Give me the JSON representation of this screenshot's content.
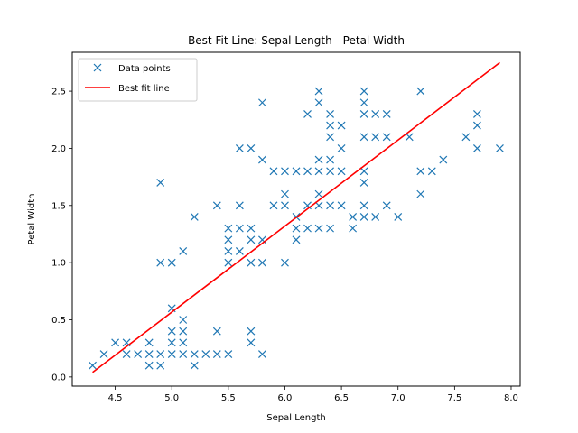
{
  "chart_data": {
    "type": "scatter",
    "title": "Best Fit Line: Sepal Length - Petal Width",
    "xlabel": "Sepal Length",
    "ylabel": "Petal Width",
    "xlim": [
      4.12,
      8.08
    ],
    "ylim": [
      -0.08,
      2.84
    ],
    "xticks": [
      4.5,
      5.0,
      5.5,
      6.0,
      6.5,
      7.0,
      7.5,
      8.0
    ],
    "xtick_labels": [
      "4.5",
      "5.0",
      "5.5",
      "6.0",
      "6.5",
      "7.0",
      "7.5",
      "8.0"
    ],
    "yticks": [
      0.0,
      0.5,
      1.0,
      1.5,
      2.0,
      2.5
    ],
    "ytick_labels": [
      "0.0",
      "0.5",
      "1.0",
      "1.5",
      "2.0",
      "2.5"
    ],
    "grid": false,
    "legend_position": "upper-left",
    "series": [
      {
        "name": "Data points",
        "kind": "scatter",
        "marker": "x",
        "color": "#1f77b4",
        "points": [
          [
            4.3,
            0.1
          ],
          [
            4.4,
            0.2
          ],
          [
            4.5,
            0.3
          ],
          [
            4.6,
            0.2
          ],
          [
            4.6,
            0.3
          ],
          [
            4.7,
            0.2
          ],
          [
            4.8,
            0.1
          ],
          [
            4.8,
            0.2
          ],
          [
            4.8,
            0.3
          ],
          [
            4.9,
            0.1
          ],
          [
            4.9,
            0.2
          ],
          [
            4.9,
            1.0
          ],
          [
            4.9,
            1.7
          ],
          [
            5.0,
            0.2
          ],
          [
            5.0,
            0.3
          ],
          [
            5.0,
            0.4
          ],
          [
            5.0,
            0.6
          ],
          [
            5.0,
            1.0
          ],
          [
            5.1,
            0.2
          ],
          [
            5.1,
            0.3
          ],
          [
            5.1,
            0.4
          ],
          [
            5.1,
            0.5
          ],
          [
            5.1,
            1.1
          ],
          [
            5.2,
            0.1
          ],
          [
            5.2,
            0.2
          ],
          [
            5.2,
            1.4
          ],
          [
            5.3,
            0.2
          ],
          [
            5.4,
            0.2
          ],
          [
            5.4,
            0.4
          ],
          [
            5.4,
            1.5
          ],
          [
            5.5,
            0.2
          ],
          [
            5.5,
            1.0
          ],
          [
            5.5,
            1.1
          ],
          [
            5.5,
            1.2
          ],
          [
            5.5,
            1.3
          ],
          [
            5.6,
            1.1
          ],
          [
            5.6,
            1.3
          ],
          [
            5.6,
            1.5
          ],
          [
            5.6,
            2.0
          ],
          [
            5.7,
            0.3
          ],
          [
            5.7,
            0.4
          ],
          [
            5.7,
            1.0
          ],
          [
            5.7,
            1.2
          ],
          [
            5.7,
            1.3
          ],
          [
            5.7,
            2.0
          ],
          [
            5.8,
            0.2
          ],
          [
            5.8,
            1.0
          ],
          [
            5.8,
            1.2
          ],
          [
            5.8,
            1.9
          ],
          [
            5.8,
            2.4
          ],
          [
            5.9,
            1.5
          ],
          [
            5.9,
            1.8
          ],
          [
            6.0,
            1.0
          ],
          [
            6.0,
            1.5
          ],
          [
            6.0,
            1.6
          ],
          [
            6.0,
            1.8
          ],
          [
            6.1,
            1.2
          ],
          [
            6.1,
            1.3
          ],
          [
            6.1,
            1.4
          ],
          [
            6.1,
            1.8
          ],
          [
            6.2,
            1.3
          ],
          [
            6.2,
            1.5
          ],
          [
            6.2,
            1.8
          ],
          [
            6.2,
            2.3
          ],
          [
            6.3,
            1.3
          ],
          [
            6.3,
            1.5
          ],
          [
            6.3,
            1.6
          ],
          [
            6.3,
            1.8
          ],
          [
            6.3,
            1.9
          ],
          [
            6.3,
            2.4
          ],
          [
            6.3,
            2.5
          ],
          [
            6.4,
            1.3
          ],
          [
            6.4,
            1.5
          ],
          [
            6.4,
            1.8
          ],
          [
            6.4,
            1.9
          ],
          [
            6.4,
            2.1
          ],
          [
            6.4,
            2.2
          ],
          [
            6.4,
            2.3
          ],
          [
            6.5,
            1.5
          ],
          [
            6.5,
            1.8
          ],
          [
            6.5,
            2.0
          ],
          [
            6.5,
            2.2
          ],
          [
            6.6,
            1.3
          ],
          [
            6.6,
            1.4
          ],
          [
            6.7,
            1.4
          ],
          [
            6.7,
            1.5
          ],
          [
            6.7,
            1.7
          ],
          [
            6.7,
            1.8
          ],
          [
            6.7,
            2.1
          ],
          [
            6.7,
            2.3
          ],
          [
            6.7,
            2.4
          ],
          [
            6.7,
            2.5
          ],
          [
            6.8,
            1.4
          ],
          [
            6.8,
            2.1
          ],
          [
            6.8,
            2.3
          ],
          [
            6.9,
            1.5
          ],
          [
            6.9,
            2.1
          ],
          [
            6.9,
            2.3
          ],
          [
            7.0,
            1.4
          ],
          [
            7.1,
            2.1
          ],
          [
            7.2,
            1.6
          ],
          [
            7.2,
            1.8
          ],
          [
            7.2,
            2.5
          ],
          [
            7.3,
            1.8
          ],
          [
            7.4,
            1.9
          ],
          [
            7.6,
            2.1
          ],
          [
            7.7,
            2.0
          ],
          [
            7.7,
            2.2
          ],
          [
            7.7,
            2.3
          ],
          [
            7.9,
            2.0
          ]
        ]
      },
      {
        "name": "Best fit line",
        "kind": "line",
        "color": "#ff0000",
        "x": [
          4.3,
          7.9
        ],
        "y": [
          0.04,
          2.75
        ]
      }
    ]
  }
}
